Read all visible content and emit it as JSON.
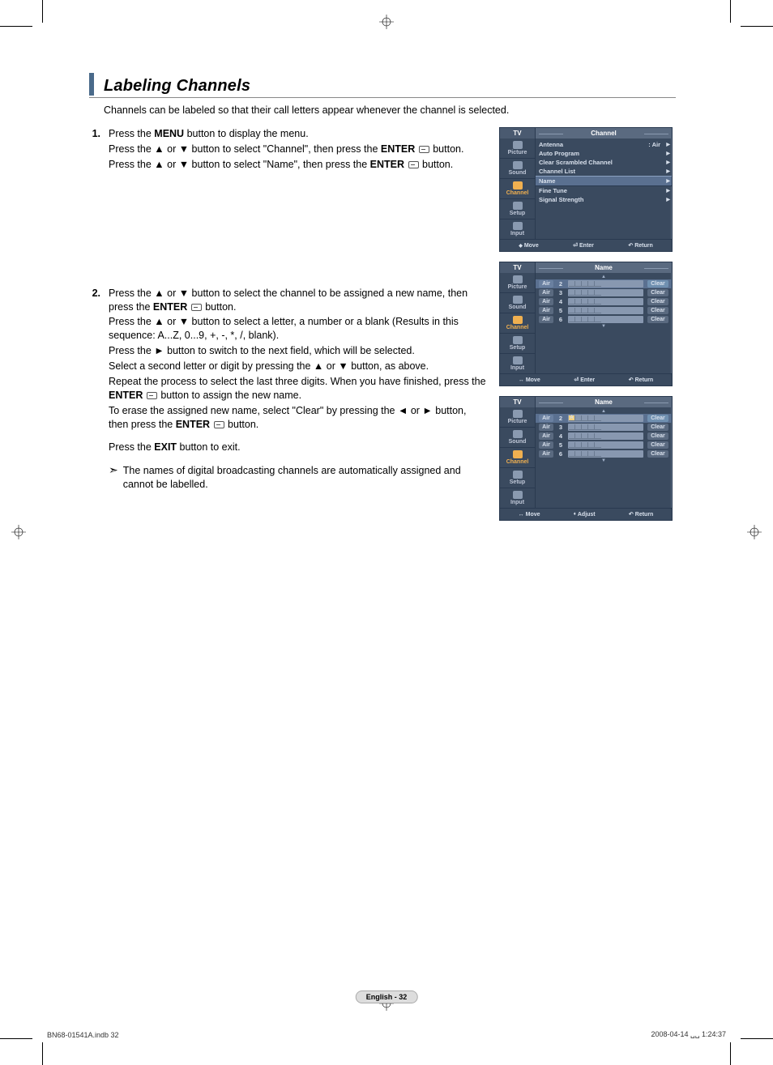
{
  "section": {
    "title": "Labeling Channels",
    "intro": "Channels can be labeled so that their call letters appear whenever the channel is selected."
  },
  "steps": [
    {
      "num": "1.",
      "lines": [
        {
          "pre": "Press the ",
          "bold": "MENU",
          "post": " button to display the menu."
        },
        {
          "pre": "Press the ▲ or ▼ button to select \"Channel\", then press the ",
          "bold": "ENTER",
          "icon": true,
          "post": " button."
        },
        {
          "pre": "Press the ▲ or ▼ button to select \"Name\", then press the ",
          "bold": "ENTER",
          "icon": true,
          "post": " button."
        }
      ]
    },
    {
      "num": "2.",
      "lines": [
        {
          "pre": "Press the ▲ or ▼ button to select the channel to be assigned a new name, then press the ",
          "bold": "ENTER",
          "icon": true,
          "post": " button."
        },
        {
          "pre": "Press the ▲ or ▼ button to select a letter, a number or a blank (Results in this sequence: A...Z, 0...9, +, -, *, /, blank)."
        },
        {
          "pre": "Press the ► button to switch to the next field, which will be selected."
        },
        {
          "pre": "Select a second letter or digit by pressing the ▲ or ▼ button, as above."
        },
        {
          "pre": "Repeat the process to select the last three digits. When you have finished, press the ",
          "bold": "ENTER",
          "icon": true,
          "post": " button to assign the new name."
        },
        {
          "pre": "To erase the assigned new name, select \"Clear\" by pressing the ◄ or ► button, then press the ",
          "bold": "ENTER",
          "icon": true,
          "post": " button."
        }
      ],
      "after": [
        {
          "pre": "Press the ",
          "bold": "EXIT",
          "post": " button to exit."
        }
      ],
      "note": "The names of digital broadcasting channels are automatically assigned and cannot be labelled."
    }
  ],
  "screens": {
    "sidebar": [
      "Picture",
      "Sound",
      "Channel",
      "Setup",
      "Input"
    ],
    "channel_menu": {
      "title": "Channel",
      "items": [
        {
          "label": "Antenna",
          "value": ": Air"
        },
        {
          "label": "Auto Program"
        },
        {
          "label": "Clear Scrambled Channel"
        },
        {
          "label": "Channel List"
        },
        {
          "label": "Name",
          "hl": true
        },
        {
          "label": "Fine Tune"
        },
        {
          "label": "Signal Strength"
        }
      ],
      "footer": [
        {
          "icon": "move",
          "text": "Move"
        },
        {
          "icon": "enter",
          "text": "Enter"
        },
        {
          "icon": "return",
          "text": "Return"
        }
      ]
    },
    "name_menu": {
      "title": "Name",
      "rows": [
        {
          "type": "Air",
          "num": "2",
          "hl": true
        },
        {
          "type": "Air",
          "num": "3"
        },
        {
          "type": "Air",
          "num": "4"
        },
        {
          "type": "Air",
          "num": "5"
        },
        {
          "type": "Air",
          "num": "6"
        }
      ],
      "clear": "Clear",
      "footer": [
        {
          "icon": "lr",
          "text": "Move"
        },
        {
          "icon": "enter",
          "text": "Enter"
        },
        {
          "icon": "return",
          "text": "Return"
        }
      ]
    },
    "name_edit": {
      "title": "Name",
      "rows": [
        {
          "type": "Air",
          "num": "2",
          "hl": true,
          "edit": "A"
        },
        {
          "type": "Air",
          "num": "3"
        },
        {
          "type": "Air",
          "num": "4"
        },
        {
          "type": "Air",
          "num": "5"
        },
        {
          "type": "Air",
          "num": "6"
        }
      ],
      "clear": "Clear",
      "footer": [
        {
          "icon": "lr",
          "text": "Move"
        },
        {
          "icon": "ud",
          "text": "Adjust"
        },
        {
          "icon": "return",
          "text": "Return"
        }
      ]
    },
    "tv_label": "TV"
  },
  "footer": {
    "page": "English - 32",
    "doc_left": "BN68-01541A.indb   32",
    "doc_right": "2008-04-14   ␣␣ 1:24:37"
  },
  "colors": {
    "title_bar": "#4a6a8a",
    "tv_bg": "#3a4a5f",
    "tv_hl": "#5a7090"
  }
}
